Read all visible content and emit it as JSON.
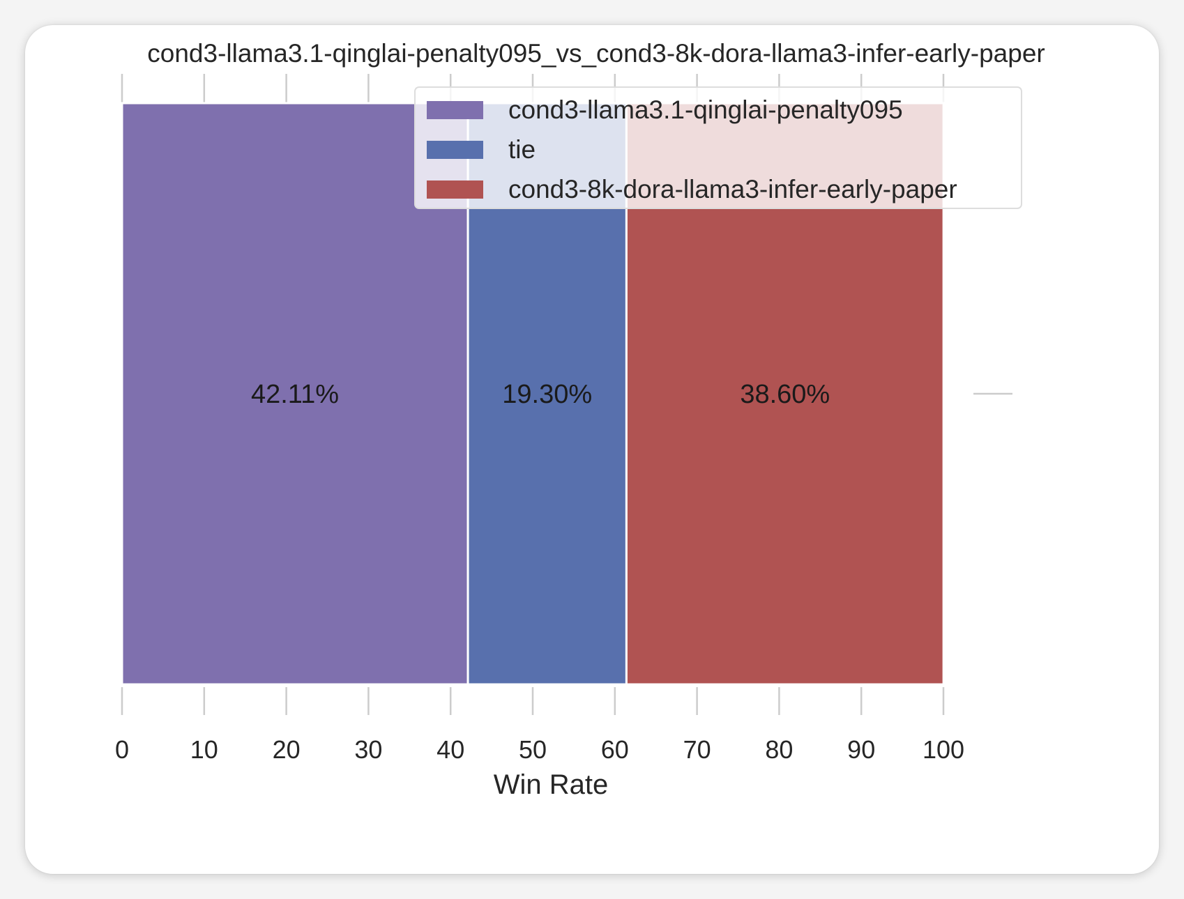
{
  "colors": {
    "page_background": "#f4f4f4",
    "card_background": "#ffffff",
    "tick_color": "#cccccc",
    "text_color": "#262626",
    "bar_separator": "#ffffff"
  },
  "chart_data": {
    "type": "bar",
    "orientation": "horizontal",
    "stacked": true,
    "title": "cond3-llama3.1-qinglai-penalty095_vs_cond3-8k-dora-llama3-infer-early-paper",
    "xlabel": "Win Rate",
    "ylabel": "",
    "xlim": [
      0,
      100
    ],
    "x_ticks": [
      0,
      10,
      20,
      30,
      40,
      50,
      60,
      70,
      80,
      90,
      100
    ],
    "x_tick_labels": [
      "0",
      "10",
      "20",
      "30",
      "40",
      "50",
      "60",
      "70",
      "80",
      "90",
      "100"
    ],
    "grid": false,
    "legend_position": "top-right",
    "series": [
      {
        "name": "cond3-llama3.1-qinglai-penalty095",
        "value": 42.11,
        "label": "42.11%",
        "color": "#7f70ae"
      },
      {
        "name": "tie",
        "value": 19.3,
        "label": "19.30%",
        "color": "#5870ad"
      },
      {
        "name": "cond3-8k-dora-llama3-infer-early-paper",
        "value": 38.6,
        "label": "38.60%",
        "color": "#b05352"
      }
    ]
  }
}
